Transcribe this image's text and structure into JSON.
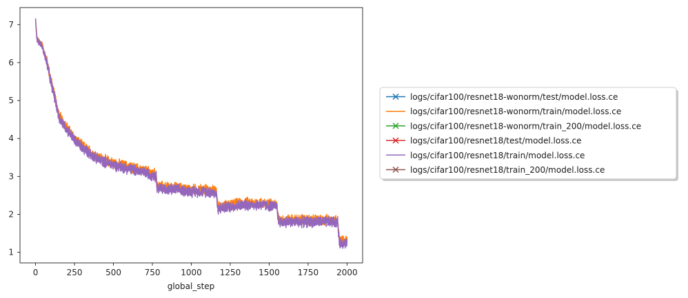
{
  "chart_data": {
    "type": "line",
    "title": "",
    "xlabel": "global_step",
    "ylabel": "",
    "xlim": [
      -100,
      2100
    ],
    "ylim": [
      0.72,
      7.45
    ],
    "xticks": [
      0,
      250,
      500,
      750,
      1000,
      1250,
      1500,
      1750,
      2000
    ],
    "yticks": [
      1,
      2,
      3,
      4,
      5,
      6,
      7
    ],
    "grid": false,
    "legend_position": "right",
    "series": [
      {
        "name": "logs/cifar100/resnet18-wonorm/test/model.loss.ce",
        "color": "#1f77b4",
        "marker": "x",
        "x": [],
        "y": []
      },
      {
        "name": "logs/cifar100/resnet18-wonorm/train/model.loss.ce",
        "color": "#ff7f0e",
        "marker": "none",
        "x": [
          0,
          10,
          40,
          75,
          100,
          125,
          150,
          200,
          250,
          300,
          400,
          500,
          600,
          700,
          775,
          780,
          850,
          900,
          1000,
          1100,
          1160,
          1170,
          1250,
          1350,
          1450,
          1550,
          1560,
          1650,
          1750,
          1850,
          1940,
          1950,
          2000
        ],
        "y": [
          7.1,
          6.6,
          6.5,
          6.0,
          5.5,
          5.1,
          4.6,
          4.3,
          4.0,
          3.8,
          3.5,
          3.35,
          3.25,
          3.15,
          3.05,
          2.75,
          2.7,
          2.7,
          2.65,
          2.65,
          2.6,
          2.2,
          2.25,
          2.3,
          2.3,
          2.25,
          1.85,
          1.85,
          1.85,
          1.85,
          1.85,
          1.3,
          1.3
        ],
        "noise": 0.12
      },
      {
        "name": "logs/cifar100/resnet18-wonorm/train_200/model.loss.ce",
        "color": "#2ca02c",
        "marker": "x",
        "x": [],
        "y": []
      },
      {
        "name": "logs/cifar100/resnet18/test/model.loss.ce",
        "color": "#d62728",
        "marker": "x",
        "x": [],
        "y": []
      },
      {
        "name": "logs/cifar100/resnet18/train/model.loss.ce",
        "color": "#9467bd",
        "marker": "none",
        "x": [
          0,
          10,
          40,
          75,
          100,
          125,
          150,
          200,
          250,
          300,
          400,
          500,
          600,
          700,
          775,
          780,
          850,
          900,
          1000,
          1100,
          1160,
          1170,
          1250,
          1350,
          1450,
          1550,
          1560,
          1650,
          1750,
          1850,
          1940,
          1950,
          2000
        ],
        "y": [
          7.1,
          6.6,
          6.45,
          5.95,
          5.45,
          5.05,
          4.55,
          4.25,
          3.95,
          3.75,
          3.45,
          3.3,
          3.2,
          3.1,
          3.0,
          2.7,
          2.65,
          2.65,
          2.6,
          2.6,
          2.55,
          2.15,
          2.2,
          2.25,
          2.25,
          2.2,
          1.8,
          1.8,
          1.8,
          1.8,
          1.8,
          1.25,
          1.25
        ],
        "noise": 0.12
      },
      {
        "name": "logs/cifar100/resnet18/train_200/model.loss.ce",
        "color": "#8c564b",
        "marker": "x",
        "x": [],
        "y": []
      }
    ]
  }
}
